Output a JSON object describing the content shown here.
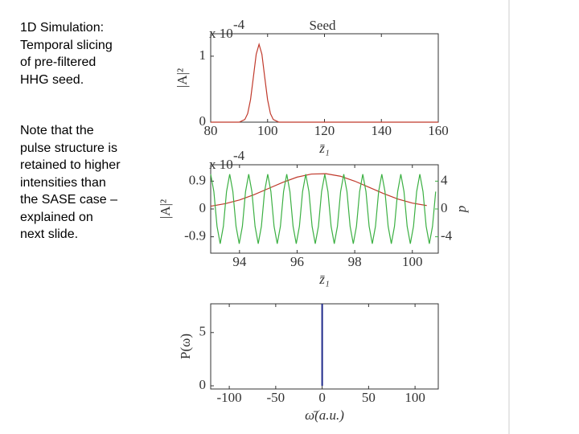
{
  "text": {
    "title": "1D Simulation: Temporal slicing of pre-filtered HHG seed.",
    "note": "Note that the pulse structure is retained to higher intensities than the SASE case – explained on next slide."
  },
  "chart_data": [
    {
      "type": "line",
      "title": "Seed",
      "multiplier": "x 10",
      "multiplier_exp": "-4",
      "y_label": "|A|²",
      "x_label": "z̄₁",
      "xlim": [
        80,
        160
      ],
      "xticks": [
        80,
        100,
        120,
        140,
        160
      ],
      "ylim": [
        0,
        1.34
      ],
      "yticks": [
        0,
        1
      ],
      "series": [
        {
          "color": "#c0392b",
          "x": [
            80,
            90,
            92,
            93,
            94,
            95,
            96,
            97,
            98,
            99,
            100,
            101,
            102,
            104,
            160
          ],
          "values": [
            0,
            0,
            0.04,
            0.13,
            0.34,
            0.68,
            1.03,
            1.18,
            1.03,
            0.68,
            0.34,
            0.13,
            0.04,
            0,
            0
          ]
        }
      ]
    },
    {
      "type": "line",
      "multiplier": "x 10",
      "multiplier_exp": "-4",
      "y_label": "|A|²",
      "y2_label": "p",
      "x_label": "z̄₁",
      "xlim": [
        93,
        100.9
      ],
      "xticks": [
        94,
        96,
        98,
        100
      ],
      "ylim": [
        -1.43,
        1.43
      ],
      "yticks": [
        -0.9,
        0,
        0.9
      ],
      "y2lim": [
        -6.36,
        6.36
      ],
      "y2ticks": [
        -4,
        0,
        4
      ],
      "y2_color": "#3cb043",
      "series": [
        {
          "color": "#c0392b",
          "x": [
            93,
            93.5,
            94,
            94.5,
            95,
            95.5,
            96,
            96.5,
            97,
            97.5,
            98,
            98.5,
            99,
            99.5,
            100,
            100.5
          ],
          "values": [
            0.09,
            0.17,
            0.29,
            0.46,
            0.66,
            0.86,
            1.03,
            1.13,
            1.14,
            1.06,
            0.9,
            0.7,
            0.5,
            0.32,
            0.19,
            0.11
          ]
        },
        {
          "color": "#3cb043",
          "axis": "y2",
          "x": [
            93,
            93.11,
            93.22,
            93.33,
            93.44,
            93.55,
            93.66,
            93.77,
            93.88,
            93.99,
            94.1,
            94.21,
            94.32,
            94.43,
            94.54,
            94.65,
            94.76,
            94.87,
            94.98,
            95.09,
            95.2,
            95.31,
            95.42,
            95.53,
            95.64,
            95.75,
            95.86,
            95.97,
            96.08,
            96.19,
            96.3,
            96.41,
            96.52,
            96.63,
            96.74,
            96.85,
            96.96,
            97.07,
            97.18,
            97.29,
            97.4,
            97.51,
            97.62,
            97.73,
            97.84,
            97.95,
            98.06,
            98.17,
            98.28,
            98.39,
            98.5,
            98.61,
            98.72,
            98.83,
            98.94,
            99.05,
            99.16,
            99.27,
            99.38,
            99.49,
            99.6,
            99.71,
            99.82,
            99.93,
            100.04,
            100.15,
            100.26,
            100.37,
            100.48,
            100.59,
            100.7,
            100.81
          ],
          "values": [
            5,
            2.5,
            -2.5,
            -5,
            -2.5,
            2.5,
            5,
            2.5,
            -2.5,
            -5,
            -2.5,
            2.5,
            5,
            2.5,
            -2.5,
            -5,
            -2.5,
            2.5,
            5,
            2.5,
            -2.5,
            -5,
            -2.5,
            2.5,
            5,
            2.5,
            -2.5,
            -5,
            -2.5,
            2.5,
            5,
            2.5,
            -2.5,
            -5,
            -2.5,
            2.5,
            5,
            2.5,
            -2.5,
            -5,
            -2.5,
            2.5,
            5,
            2.5,
            -2.5,
            -5,
            -2.5,
            2.5,
            5,
            2.5,
            -2.5,
            -5,
            -2.5,
            2.5,
            5,
            2.5,
            -2.5,
            -5,
            -2.5,
            2.5,
            5,
            2.5,
            -2.5,
            -5,
            -2.5,
            2.5,
            5,
            2.5,
            -2.5,
            -5,
            -2.5,
            2.5
          ]
        }
      ]
    },
    {
      "type": "stem",
      "y_label": "P(ω)",
      "x_label": "ω̄(a.u.)",
      "xlim": [
        -120,
        125
      ],
      "xticks": [
        -100,
        -50,
        0,
        50,
        100
      ],
      "ylim": [
        -0.3,
        7.7
      ],
      "yticks": [
        0,
        5
      ],
      "series": [
        {
          "color": "#1f2a8a",
          "x": [
            0
          ],
          "values": [
            7.7
          ]
        }
      ]
    }
  ]
}
